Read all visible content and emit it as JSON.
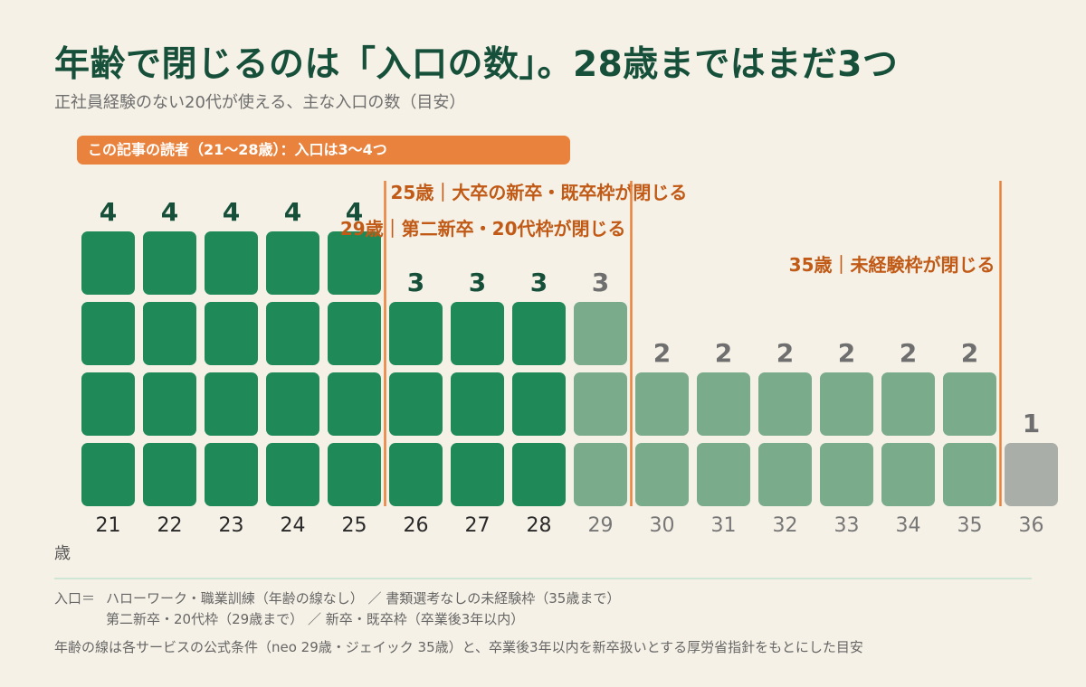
{
  "title": "年齢で閉じるのは「入口の数」。28歳まではまだ3つ",
  "subtitle": "正社員経験のない20代が使える、主な入口の数（目安）",
  "reader_banner": "この記事の読者（21〜28歳）：入口は3〜4つ",
  "unit_label": "歳",
  "legend": {
    "label": "入口＝",
    "line1": "ハローワーク・職業訓練（年齢の線なし） ／ 書類選考なしの未経験枠（35歳まで）",
    "line2": "第二新卒・20代枠（29歳まで） ／ 新卒・既卒枠（卒業後3年以内）"
  },
  "footnote": "年齢の線は各サービスの公式条件（neo 29歳・ジェイック 35歳）と、卒業後3年以内を新卒扱いとする厚労省指針をもとにした目安",
  "colors": {
    "reader": "#1f8a58",
    "reader_label": "#16503a",
    "after": "#7aab8b",
    "after_label": "#6f6f6f",
    "last": "#a9aea9",
    "accent": "#e8823c",
    "cutoff_label": "#c05a16",
    "age_reader": "#2a2a2a",
    "age_after": "#777777"
  },
  "chart_data": {
    "type": "bar",
    "xlabel": "歳",
    "categories": [
      "21",
      "22",
      "23",
      "24",
      "25",
      "26",
      "27",
      "28",
      "29",
      "30",
      "31",
      "32",
      "33",
      "34",
      "35",
      "36"
    ],
    "values": [
      4,
      4,
      4,
      4,
      4,
      3,
      3,
      3,
      3,
      2,
      2,
      2,
      2,
      2,
      2,
      1
    ],
    "ylim": [
      0,
      4
    ],
    "grid": false,
    "highlight_range": [
      "21",
      "28"
    ],
    "cutoffs": [
      {
        "after": "25",
        "label": "25歳｜大卒の新卒・既卒枠が閉じる"
      },
      {
        "after": "29",
        "label": "29歳｜第二新卒・20代枠が閉じる"
      },
      {
        "after": "35",
        "label": "35歳｜未経験枠が閉じる"
      }
    ]
  }
}
